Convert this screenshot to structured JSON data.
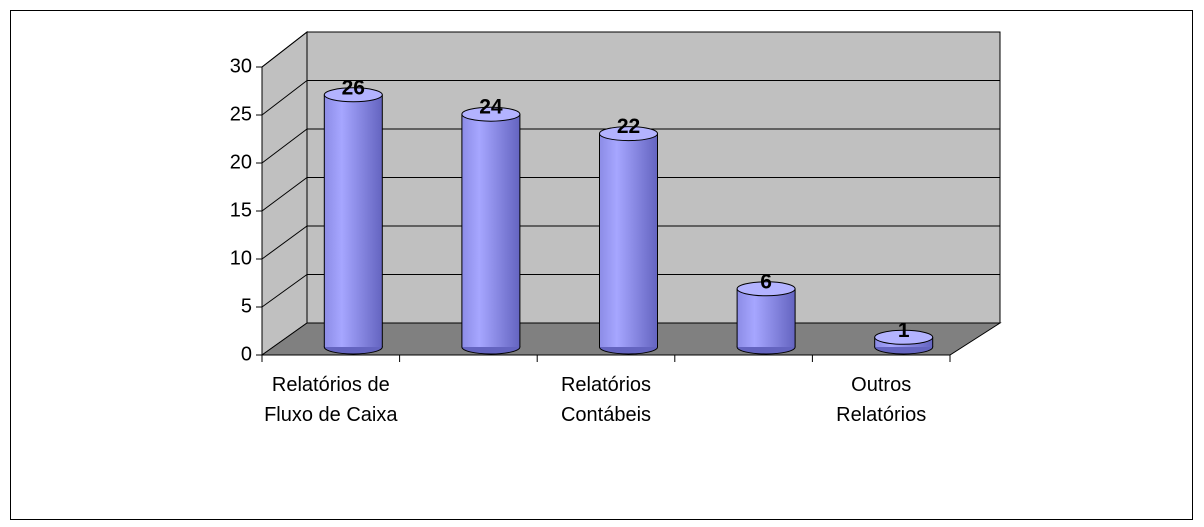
{
  "chart_data": {
    "type": "bar",
    "categories": [
      "Relatórios de Fluxo de Caixa",
      null,
      "Relatórios Contábeis",
      null,
      "Outros Relatórios"
    ],
    "values": [
      26,
      24,
      22,
      6,
      1
    ],
    "color": "#9999ff",
    "ylim": [
      0,
      30
    ],
    "yticks": [
      0,
      5,
      10,
      15,
      20,
      25,
      30
    ],
    "grid": true
  }
}
